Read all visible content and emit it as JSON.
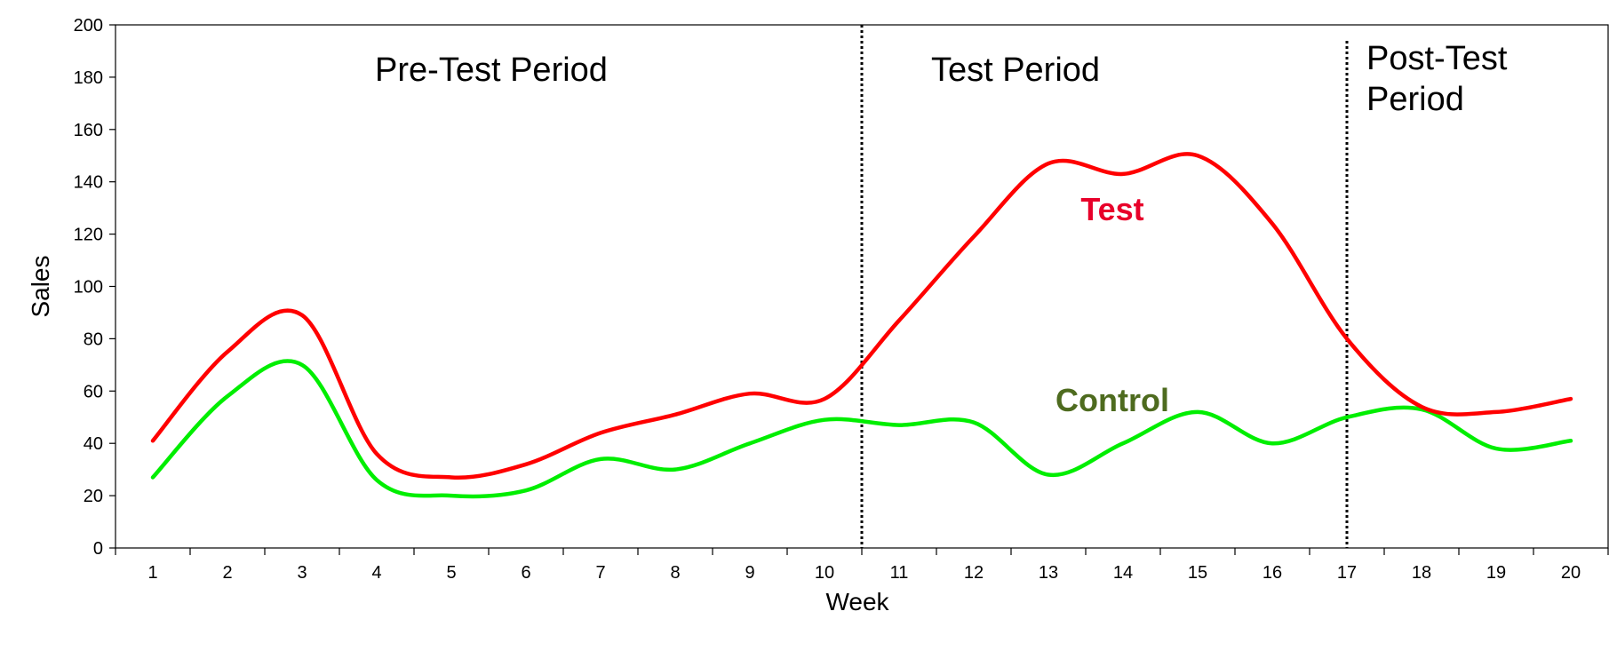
{
  "chart_data": {
    "type": "line",
    "x": [
      1,
      2,
      3,
      4,
      5,
      6,
      7,
      8,
      9,
      10,
      11,
      12,
      13,
      14,
      15,
      16,
      17,
      18,
      19,
      20
    ],
    "xlabel": "Week",
    "ylabel": "Sales",
    "xlim": [
      0.5,
      20.5
    ],
    "ylim": [
      0,
      200
    ],
    "yticks": [
      0,
      20,
      40,
      60,
      80,
      100,
      120,
      140,
      160,
      180,
      200
    ],
    "grid": false,
    "series": [
      {
        "name": "Test",
        "color": "#ff0000",
        "label_color": "#e8002a",
        "values": [
          41,
          75,
          89,
          36,
          27,
          32,
          44,
          51,
          59,
          57,
          87,
          119,
          147,
          143,
          150,
          124,
          80,
          54,
          52,
          57
        ]
      },
      {
        "name": "Control",
        "color": "#00ee00",
        "label_color": "#4e6b1f",
        "values": [
          27,
          58,
          70,
          26,
          20,
          22,
          34,
          30,
          40,
          49,
          47,
          48,
          28,
          40,
          52,
          40,
          50,
          53,
          38,
          41
        ]
      }
    ],
    "annotations": {
      "periods": [
        {
          "lines": [
            "Pre-Test Period"
          ]
        },
        {
          "lines": [
            "Test Period"
          ]
        },
        {
          "lines": [
            "Post-Test",
            "Period"
          ]
        }
      ],
      "dividers_at_week": [
        10.5,
        17
      ]
    }
  }
}
